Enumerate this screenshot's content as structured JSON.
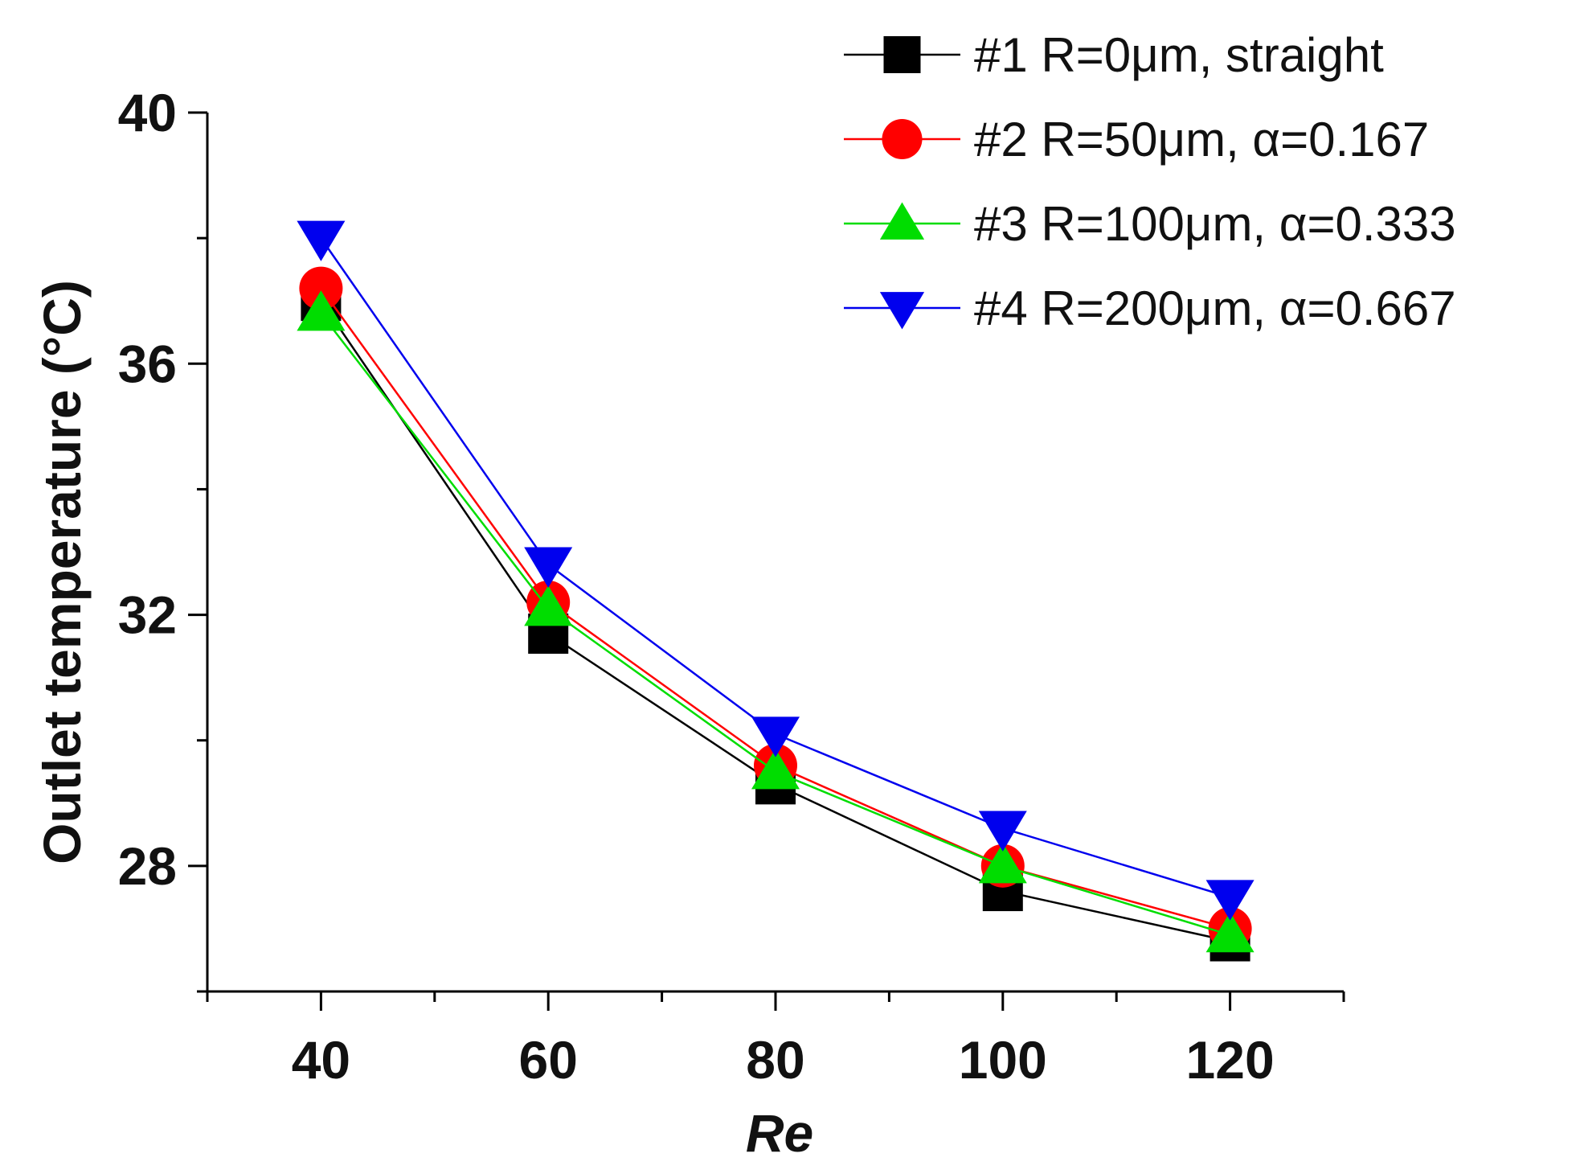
{
  "chart_data": {
    "type": "line",
    "title": "",
    "xlabel": "Re",
    "ylabel": "Outlet temperature (°C)",
    "xlim": [
      30,
      130
    ],
    "ylim": [
      26,
      40
    ],
    "x_ticks": [
      40,
      60,
      80,
      100,
      120
    ],
    "x_tick_labels": [
      "40",
      "60",
      "80",
      "100",
      "120"
    ],
    "y_ticks": [
      28,
      32,
      36,
      40
    ],
    "y_tick_labels": [
      "28",
      "32",
      "36",
      "40"
    ],
    "legend_position": "top-right",
    "x": [
      40,
      60,
      80,
      100,
      120
    ],
    "series": [
      {
        "name": "#1 R=0μm, straight",
        "marker": "square",
        "color": "#000000",
        "values": [
          37.0,
          31.7,
          29.3,
          27.6,
          26.8
        ]
      },
      {
        "name": "#2 R=50μm, α=0.167",
        "marker": "circle",
        "color": "#ff0000",
        "values": [
          37.2,
          32.2,
          29.6,
          28.0,
          27.0
        ]
      },
      {
        "name": "#3 R=100μm, α=0.333",
        "marker": "triangle-up",
        "color": "#00dd00",
        "values": [
          36.8,
          32.1,
          29.5,
          28.0,
          26.9
        ]
      },
      {
        "name": "#4 R=200μm, α=0.667",
        "marker": "triangle-down",
        "color": "#0000ee",
        "values": [
          38.0,
          32.8,
          30.1,
          28.6,
          27.5
        ]
      }
    ]
  }
}
